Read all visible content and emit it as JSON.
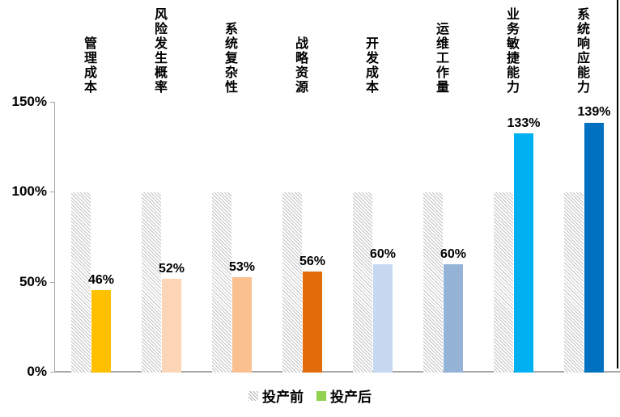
{
  "chart_data": {
    "type": "bar",
    "title": "",
    "xlabel": "",
    "ylabel": "",
    "categories": [
      "管理成本",
      "风险发生概率",
      "系统复杂性",
      "战略资源",
      "开发成本",
      "运维工作量",
      "业务敏捷能力",
      "系统响应能力"
    ],
    "series": [
      {
        "name": "投产前",
        "values": [
          100,
          100,
          100,
          100,
          100,
          100,
          100,
          100
        ],
        "style": "hatched",
        "legend_color": "#b0b0b0"
      },
      {
        "name": "投产后",
        "values": [
          46,
          52,
          53,
          56,
          60,
          60,
          133,
          139
        ],
        "style": "solid",
        "colors": [
          "#FFC000",
          "#FBD5B5",
          "#FAC090",
          "#E36C0A",
          "#C6D9F1",
          "#95B3D7",
          "#00B0F0",
          "#0070C0"
        ],
        "legend_color": "#92D050"
      }
    ],
    "value_labels": [
      "46%",
      "52%",
      "53%",
      "56%",
      "60%",
      "60%",
      "133%",
      "139%"
    ],
    "yticks": [
      {
        "value": 0,
        "label": "0%"
      },
      {
        "value": 50,
        "label": "50%"
      },
      {
        "value": 100,
        "label": "100%"
      },
      {
        "value": 150,
        "label": "150%"
      }
    ],
    "ylim": [
      0,
      150
    ],
    "grid": false,
    "legend_position": "bottom",
    "axis_color": "#a6a6a6",
    "category_label_orientation": "vertical"
  }
}
